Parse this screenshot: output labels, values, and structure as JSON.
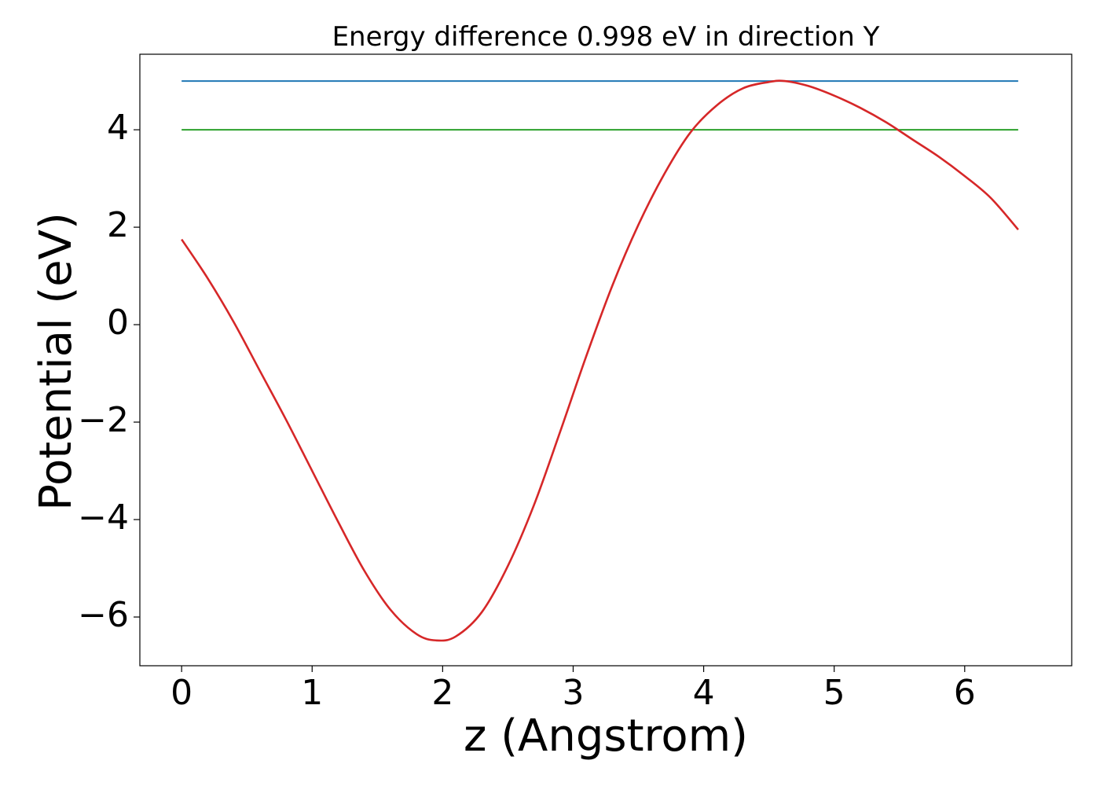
{
  "chart_data": {
    "type": "line",
    "title": "Energy difference 0.998 eV in direction Y",
    "xlabel": "z (Angstrom)",
    "ylabel": "Potential (eV)",
    "xlim": [
      -0.32,
      6.82
    ],
    "ylim": [
      -7.0,
      5.55
    ],
    "xticks": [
      0,
      1,
      2,
      3,
      4,
      5,
      6
    ],
    "xtick_labels": [
      "0",
      "1",
      "2",
      "3",
      "4",
      "5",
      "6"
    ],
    "yticks": [
      -6,
      -4,
      -2,
      0,
      2,
      4
    ],
    "ytick_labels": [
      "−6",
      "−4",
      "−2",
      "0",
      "2",
      "4"
    ],
    "grid": false,
    "legend": "none",
    "series": [
      {
        "color": "#d62728",
        "x": [
          0,
          0.2,
          0.4,
          0.6,
          0.8,
          1.0,
          1.2,
          1.4,
          1.6,
          1.8,
          1.95,
          2.1,
          2.3,
          2.5,
          2.7,
          2.9,
          3.1,
          3.3,
          3.5,
          3.7,
          3.9,
          4.1,
          4.3,
          4.5,
          4.62,
          4.8,
          5.0,
          5.2,
          5.4,
          5.6,
          5.8,
          6.0,
          6.2,
          6.41
        ],
        "y": [
          1.75,
          0.95,
          0.05,
          -0.95,
          -1.95,
          -3.0,
          -4.05,
          -5.05,
          -5.85,
          -6.35,
          -6.48,
          -6.4,
          -5.9,
          -4.95,
          -3.7,
          -2.2,
          -0.65,
          0.8,
          2.05,
          3.1,
          3.95,
          4.5,
          4.85,
          4.98,
          5.0,
          4.9,
          4.7,
          4.45,
          4.15,
          3.8,
          3.45,
          3.05,
          2.6,
          1.95
        ]
      },
      {
        "color": "#1f77b4",
        "x": [
          0,
          6.41
        ],
        "y": [
          5.0,
          5.0
        ]
      },
      {
        "color": "#2ca02c",
        "x": [
          0,
          6.41
        ],
        "y": [
          4.0,
          4.0
        ]
      }
    ]
  }
}
